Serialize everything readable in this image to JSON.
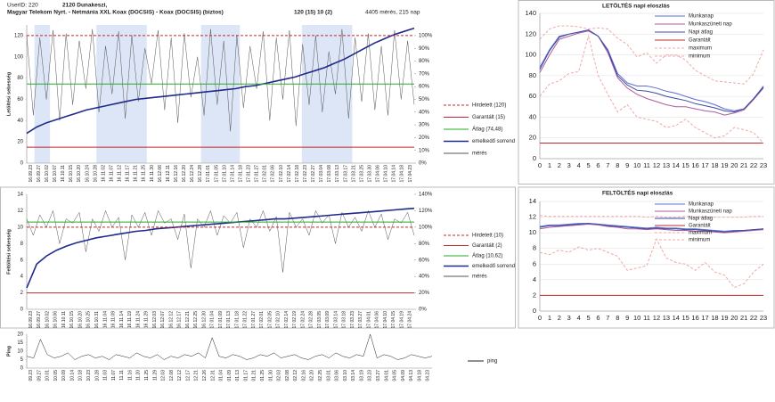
{
  "header": {
    "user": "UserID:  220",
    "city": "2120 Dunakeszi,",
    "provider": "Magyar Telekom Nyrt. - Netmánia XXL Koax (DOCSIS) - Koax (DOCSIS) (biztos)",
    "speeds": "120 (15)   10 (2)",
    "count": "4405 mérés,  215 nap"
  },
  "chart_data": [
    {
      "type": "line",
      "y_label": "Letöltési sebesség",
      "ylim": [
        0,
        130
      ],
      "yticks": [
        0,
        20,
        40,
        60,
        80,
        100,
        120
      ],
      "y2lim": [
        0,
        108.33
      ],
      "y2ticks": [
        {
          "value": 0,
          "label": "0%"
        },
        {
          "value": 10,
          "label": "10%"
        },
        {
          "value": 20,
          "label": "20%"
        },
        {
          "value": 30,
          "label": "30%"
        },
        {
          "value": 40,
          "label": "40%"
        },
        {
          "value": 50,
          "label": "50%"
        },
        {
          "value": 60,
          "label": "60%"
        },
        {
          "value": 70,
          "label": "70%"
        },
        {
          "value": 80,
          "label": "80%"
        },
        {
          "value": 90,
          "label": "90%"
        },
        {
          "value": 100,
          "label": "100%"
        }
      ],
      "x_labels": [
        "16.09.23",
        "16.09.27",
        "16.10.02",
        "16.10.07",
        "16.10.11",
        "16.10.15",
        "16.10.20",
        "16.10.24",
        "16.10.28",
        "16.11.02",
        "16.11.07",
        "16.11.12",
        "16.11.17",
        "16.11.21",
        "16.11.25",
        "16.11.30",
        "16.12.06",
        "16.12.11",
        "16.12.16",
        "16.12.20",
        "16.12.24",
        "16.12.28",
        "17.01.01",
        "17.01.05",
        "17.01.10",
        "17.01.14",
        "17.01.18",
        "17.01.23",
        "17.01.27",
        "17.02.01",
        "17.02.06",
        "17.02.10",
        "17.02.14",
        "17.02.18",
        "17.02.23",
        "17.02.27",
        "17.03.04",
        "17.03.08",
        "17.03.13",
        "17.03.17",
        "17.03.21",
        "17.03.25",
        "17.03.30",
        "17.04.06",
        "17.04.10",
        "17.04.14",
        "17.04.18",
        "17.04.23"
      ],
      "series": [
        {
          "name": "Hirdetett (120)",
          "color": "#c0282d",
          "dash": true,
          "value": 120
        },
        {
          "name": "Garantált (15)",
          "color": "#c0282d",
          "value": 15
        },
        {
          "name": "Átlag (74,48)",
          "color": "#2aa82a",
          "value": 74.48
        },
        {
          "name": "emelkedő sorrend",
          "color": "#1f2a8c",
          "width": 1.6,
          "values": [
            28,
            34,
            38,
            41,
            44,
            47,
            50,
            52,
            54,
            56,
            58,
            60,
            61,
            62,
            63,
            64,
            65,
            66,
            67,
            68,
            69,
            70,
            72,
            73,
            75,
            77,
            79,
            81,
            84,
            87,
            90,
            94,
            98,
            103,
            108,
            113,
            117,
            121,
            124,
            127
          ]
        },
        {
          "name": "mérés",
          "color": "#555555",
          "width": 0.5,
          "values": [
            120,
            45,
            118,
            60,
            125,
            40,
            122,
            55,
            115,
            70,
            126,
            48,
            110,
            65,
            124,
            42,
            120,
            58,
            108,
            75,
            125,
            50,
            118,
            38,
            122,
            62,
            100,
            45,
            126,
            55,
            115,
            30,
            120,
            52,
            110,
            70,
            124,
            40,
            118,
            60,
            125,
            35,
            112,
            55,
            120,
            48,
            105,
            65,
            126,
            42,
            118,
            58,
            122,
            50,
            110,
            45,
            125,
            60,
            115,
            55
          ]
        }
      ]
    },
    {
      "type": "daily",
      "title": "LETÖLTÉS napi eloszlás",
      "ylim": [
        0,
        140
      ],
      "yticks": [
        0,
        20,
        40,
        60,
        80,
        100,
        120,
        140
      ],
      "categories": [
        0,
        1,
        2,
        3,
        4,
        5,
        6,
        7,
        8,
        9,
        10,
        11,
        12,
        13,
        14,
        15,
        16,
        17,
        18,
        19,
        20,
        21,
        22,
        23
      ],
      "series": [
        {
          "name": "Munkanap",
          "color": "#5b6fd0",
          "values": [
            88,
            105,
            118,
            120,
            122,
            124,
            118,
            105,
            82,
            73,
            70,
            70,
            68,
            65,
            63,
            60,
            57,
            55,
            52,
            48,
            46,
            48,
            58,
            70
          ]
        },
        {
          "name": "Munkaszüneti nap",
          "color": "#b05a9c",
          "values": [
            83,
            100,
            115,
            118,
            121,
            123,
            118,
            102,
            78,
            68,
            62,
            58,
            55,
            52,
            50,
            50,
            48,
            46,
            45,
            42,
            44,
            47,
            57,
            68
          ]
        },
        {
          "name": "Napi átlag",
          "color": "#3c4aa0",
          "values": [
            86,
            104,
            117,
            120,
            122,
            124,
            118,
            104,
            80,
            71,
            66,
            65,
            63,
            60,
            58,
            56,
            53,
            51,
            49,
            46,
            45,
            48,
            58,
            69
          ]
        },
        {
          "name": "Garantált",
          "color": "#c0282d",
          "value": 15
        },
        {
          "name": "maximum",
          "color": "#f0a8a8",
          "dash": true,
          "values": [
            115,
            125,
            128,
            128,
            127,
            125,
            126,
            125,
            116,
            110,
            98,
            102,
            92,
            100,
            100,
            95,
            85,
            80,
            75,
            74,
            73,
            72,
            82,
            105
          ]
        },
        {
          "name": "minimum",
          "color": "#f0a8a8",
          "dash": true,
          "values": [
            60,
            72,
            75,
            82,
            84,
            118,
            80,
            62,
            45,
            52,
            40,
            38,
            36,
            30,
            32,
            38,
            30,
            25,
            20,
            22,
            30,
            28,
            25,
            15
          ]
        }
      ]
    },
    {
      "type": "line",
      "y_label": "Feltöltési sebesség",
      "ylim": [
        0,
        14
      ],
      "yticks": [
        0,
        2,
        4,
        6,
        8,
        10,
        12,
        14
      ],
      "y2lim": [
        0,
        140
      ],
      "y2ticks": [
        {
          "value": 0,
          "label": "0%"
        },
        {
          "value": 20,
          "label": "20%"
        },
        {
          "value": 40,
          "label": "40%"
        },
        {
          "value": 60,
          "label": "60%"
        },
        {
          "value": 80,
          "label": "80%"
        },
        {
          "value": 100,
          "label": "100%"
        },
        {
          "value": 120,
          "label": "120%"
        },
        {
          "value": 140,
          "label": "140%"
        }
      ],
      "x_labels": [
        "16.09.23",
        "16.09.27",
        "16.10.02",
        "16.10.06",
        "16.10.11",
        "16.10.15",
        "16.10.20",
        "16.10.25",
        "16.10.31",
        "16.11.04",
        "16.11.09",
        "16.11.14",
        "16.11.19",
        "16.11.24",
        "16.11.29",
        "16.12.03",
        "16.12.07",
        "16.12.12",
        "16.12.17",
        "16.12.21",
        "16.12.25",
        "16.12.30",
        "17.01.04",
        "17.01.09",
        "17.01.13",
        "17.01.18",
        "17.01.22",
        "17.01.27",
        "17.02.01",
        "17.02.05",
        "17.02.10",
        "17.02.14",
        "17.02.19",
        "17.02.24",
        "17.02.28",
        "17.03.05",
        "17.03.09",
        "17.03.14",
        "17.03.18",
        "17.03.23",
        "17.03.27",
        "17.04.01",
        "17.04.06",
        "17.04.10",
        "17.04.15",
        "17.04.19",
        "17.04.24"
      ],
      "series": [
        {
          "name": "Hirdetett (10)",
          "color": "#c0282d",
          "dash": true,
          "value": 10
        },
        {
          "name": "Garantált (2)",
          "color": "#c0282d",
          "value": 2
        },
        {
          "name": "Átlag (10,62)",
          "color": "#2aa82a",
          "value": 10.62
        },
        {
          "name": "emelkedő sorrend",
          "color": "#1f2a8c",
          "width": 1.6,
          "values": [
            2.6,
            5.5,
            6.5,
            7.2,
            7.7,
            8.1,
            8.4,
            8.7,
            8.9,
            9.1,
            9.3,
            9.5,
            9.6,
            9.8,
            9.9,
            10,
            10.1,
            10.2,
            10.3,
            10.4,
            10.5,
            10.6,
            10.7,
            10.8,
            10.9,
            11,
            11,
            11.1,
            11.2,
            11.3,
            11.4,
            11.5,
            11.6,
            11.7,
            11.8,
            11.9,
            12,
            12.1,
            12.2,
            12.3
          ]
        },
        {
          "name": "mérés",
          "color": "#555555",
          "width": 0.5,
          "values": [
            11,
            9,
            11.5,
            10,
            12,
            8,
            11,
            10.5,
            11.8,
            7,
            11,
            9.5,
            12,
            10,
            11.2,
            6,
            11.5,
            10,
            11.8,
            9,
            12,
            10.5,
            11,
            8.5,
            11.6,
            5,
            11,
            10,
            12,
            9,
            11.4,
            10.5,
            11.8,
            7.5,
            11,
            10,
            12,
            9.5,
            11.3,
            4.5,
            11.8,
            10,
            11,
            9,
            12,
            10.5,
            11.5,
            8,
            11.8,
            10,
            11.2,
            9.5,
            12,
            10,
            11.6,
            8.5,
            11,
            10.5,
            11.8,
            9
          ]
        }
      ]
    },
    {
      "type": "daily",
      "title": "FELTÖLTÉS napi eloszlás",
      "ylim": [
        0,
        14
      ],
      "yticks": [
        0,
        2,
        4,
        6,
        8,
        10,
        12,
        14
      ],
      "categories": [
        0,
        1,
        2,
        3,
        4,
        5,
        6,
        7,
        8,
        9,
        10,
        11,
        12,
        13,
        14,
        15,
        16,
        17,
        18,
        19,
        20,
        21,
        22,
        23
      ],
      "series": [
        {
          "name": "Munkanap",
          "color": "#5b6fd0",
          "values": [
            10.8,
            11,
            11,
            11.1,
            11.2,
            11.2,
            11.1,
            11,
            10.9,
            10.8,
            10.7,
            10.6,
            10.7,
            10.6,
            10.6,
            10.5,
            10.5,
            10.4,
            10.3,
            10.2,
            10.3,
            10.3,
            10.4,
            10.5
          ]
        },
        {
          "name": "Munkaszüneti nap",
          "color": "#b05a9c",
          "values": [
            10.5,
            10.7,
            10.8,
            10.9,
            11,
            11.1,
            11,
            10.8,
            10.7,
            10.5,
            10.5,
            10.4,
            10.5,
            10.4,
            10.3,
            10.3,
            10.2,
            10.2,
            10.1,
            10,
            10.1,
            10.2,
            10.3,
            10.4
          ]
        },
        {
          "name": "Napi átlag",
          "color": "#3c4aa0",
          "values": [
            10.7,
            10.9,
            10.9,
            11,
            11.1,
            11.2,
            11.1,
            10.9,
            10.8,
            10.7,
            10.6,
            10.5,
            10.6,
            10.5,
            10.5,
            10.4,
            10.4,
            10.3,
            10.2,
            10.1,
            10.2,
            10.3,
            10.4,
            10.5
          ]
        },
        {
          "name": "Garantált",
          "color": "#c0282d",
          "value": 2
        },
        {
          "name": "maximum",
          "color": "#f0a8a8",
          "dash": true,
          "values": [
            12.2,
            12.1,
            12.1,
            12.1,
            12.1,
            12.1,
            12.1,
            12.1,
            12.1,
            12.1,
            12.1,
            12,
            12.1,
            12,
            12,
            12.1,
            12,
            12,
            12,
            12,
            12,
            12,
            12.1,
            12.1
          ]
        },
        {
          "name": "minimum",
          "color": "#f0a8a8",
          "dash": true,
          "values": [
            7.5,
            7.2,
            7.8,
            7.5,
            8.2,
            7.8,
            8,
            7.5,
            7,
            5.2,
            5.5,
            5.8,
            9.2,
            6.8,
            6.2,
            6,
            5.2,
            6.2,
            5,
            4.6,
            3,
            3.5,
            5,
            6
          ]
        }
      ]
    },
    {
      "type": "line",
      "y_label": "Ping",
      "ylim": [
        0,
        20
      ],
      "yticks": [
        0,
        5,
        10,
        15,
        20
      ],
      "x_labels": [
        "09.23",
        "09.27",
        "10.01",
        "10.05",
        "10.09",
        "10.14",
        "10.18",
        "10.23",
        "10.28",
        "11.03",
        "11.07",
        "11.11",
        "11.16",
        "11.20",
        "11.25",
        "11.29",
        "12.03",
        "12.08",
        "12.12",
        "12.17",
        "12.21",
        "12.26",
        "12.31",
        "01.04",
        "01.09",
        "01.13",
        "01.17",
        "01.21",
        "01.25",
        "01.30",
        "02.03",
        "02.08",
        "02.12",
        "02.16",
        "02.20",
        "02.25",
        "03.01",
        "03.06",
        "03.10",
        "03.14",
        "03.19",
        "03.23",
        "03.27",
        "04.01",
        "04.05",
        "04.09",
        "04.13",
        "04.18",
        "04.23"
      ],
      "series": [
        {
          "name": "ping",
          "color": "#222222",
          "width": 0.5,
          "values": [
            7,
            6,
            17,
            8,
            6,
            7,
            9,
            5,
            7,
            8,
            6,
            7,
            5,
            8,
            7,
            6,
            9,
            7,
            6,
            8,
            5,
            7,
            6,
            8,
            7,
            9,
            6,
            18,
            7,
            6,
            8,
            7,
            5,
            6,
            8,
            7,
            9,
            6,
            7,
            8,
            6,
            5,
            7,
            8,
            6,
            9,
            7,
            6,
            8,
            7,
            20,
            6,
            8,
            7,
            5,
            6,
            8,
            7,
            6,
            7
          ]
        }
      ]
    }
  ]
}
